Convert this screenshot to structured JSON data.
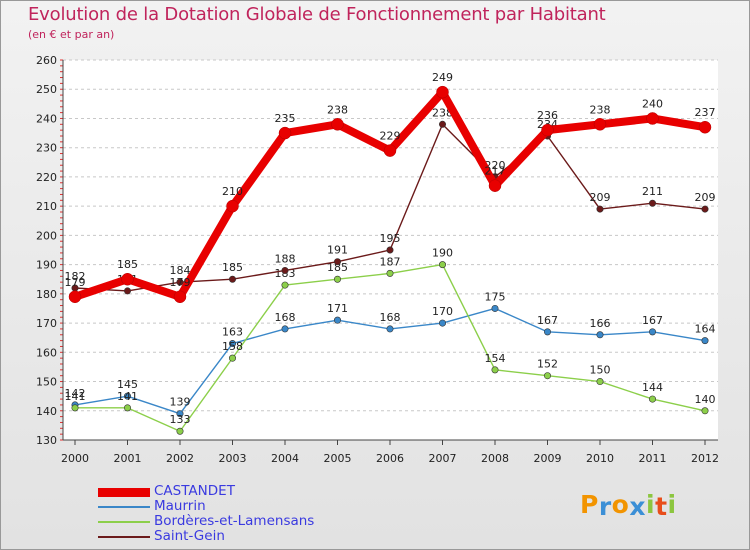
{
  "header": {
    "title": "Evolution de la Dotation Globale de Fonctionnement par Habitant",
    "subtitle": "(en € et par an)"
  },
  "chart_data": {
    "type": "line",
    "title": "Evolution de la Dotation Globale de Fonctionnement par Habitant",
    "subtitle": "(en € et par an)",
    "xlabel": "",
    "ylabel": "",
    "x": [
      "2000",
      "2001",
      "2002",
      "2003",
      "2004",
      "2005",
      "2006",
      "2007",
      "2008",
      "2009",
      "2010",
      "2011",
      "2012"
    ],
    "ylim": [
      130,
      260
    ],
    "yticks": [
      130,
      140,
      150,
      160,
      170,
      180,
      190,
      200,
      210,
      220,
      230,
      240,
      250,
      260
    ],
    "grid": "horizontal dashed",
    "legend_position": "bottom-left",
    "series": [
      {
        "name": "CASTANDET",
        "color": "#e80000",
        "emphasis": true,
        "values": [
          179,
          185,
          179,
          210,
          235,
          238,
          229,
          249,
          217,
          236,
          238,
          240,
          237
        ]
      },
      {
        "name": "Maurrin",
        "color": "#3a87c8",
        "values": [
          142,
          145,
          139,
          163,
          168,
          171,
          168,
          170,
          175,
          167,
          166,
          167,
          164
        ]
      },
      {
        "name": "Bordères-et-Lamensans",
        "color": "#8ccf4a",
        "values": [
          141,
          141,
          133,
          158,
          183,
          185,
          187,
          190,
          154,
          152,
          150,
          144,
          140
        ]
      },
      {
        "name": "Saint-Gein",
        "color": "#6b1a1a",
        "values": [
          182,
          181,
          184,
          185,
          188,
          191,
          195,
          238,
          220,
          234,
          209,
          211,
          209
        ]
      }
    ]
  },
  "logo": {
    "letters": [
      "P",
      "r",
      "o",
      "x",
      "i",
      "t",
      "i"
    ],
    "colors": [
      "#f29400",
      "#3b8fd6",
      "#f29400",
      "#3b8fd6",
      "#8cc63f",
      "#e84e1b",
      "#8cc63f"
    ]
  }
}
